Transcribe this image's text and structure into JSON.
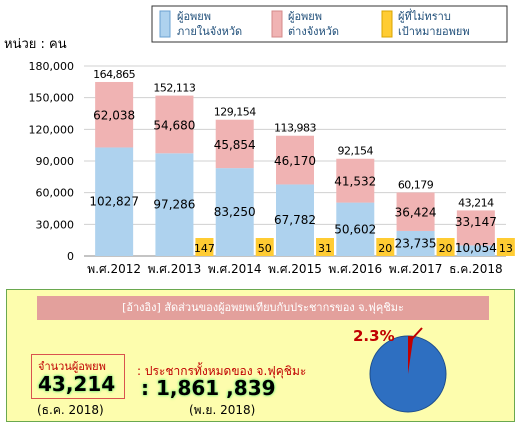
{
  "chart_data": {
    "type": "bar",
    "stacked": true,
    "unit_label": "หน่วย : คน",
    "categories": [
      "พ.ศ.2012",
      "พ.ศ.2013",
      "พ.ศ.2014",
      "พ.ศ.2015",
      "พ.ศ.2016",
      "พ.ศ.2017",
      "ธ.ค.2018"
    ],
    "series": [
      {
        "name": "ผู้อพยพ ภายในจังหวัด",
        "color": "#aed2ee",
        "values": [
          102827,
          97286,
          83250,
          67782,
          50602,
          23735,
          10054
        ]
      },
      {
        "name": "ผู้อพยพ ต่างจังหวัด",
        "color": "#f0b3b3",
        "values": [
          62038,
          54680,
          45854,
          46170,
          41532,
          36424,
          33147
        ]
      }
    ],
    "unknown_series": {
      "name": "ผู้ที่ไม่ทราบ เป้าหมายอพยพ",
      "color": "#ffcc33",
      "values": [
        null,
        147,
        50,
        31,
        20,
        20,
        13
      ]
    },
    "totals": [
      "164,865",
      "152,113",
      "129,154",
      "113,983",
      "92,154",
      "60,179",
      "43,214"
    ],
    "inner_labels": [
      "102,827",
      "97,286",
      "83,250",
      "67,782",
      "50,602",
      "23,735",
      "10,054"
    ],
    "outer_labels": [
      "62,038",
      "54,680",
      "45,854",
      "46,170",
      "41,532",
      "36,424",
      "33,147"
    ],
    "unknown_labels": [
      "",
      "147",
      "50",
      "31",
      "20",
      "20",
      "13"
    ],
    "yticks": [
      0,
      30000,
      60000,
      90000,
      120000,
      150000,
      180000
    ],
    "ytick_labels": [
      "0",
      "30,000",
      "60,000",
      "90,000",
      "120,000",
      "150,000",
      "180,000"
    ],
    "ylim": [
      0,
      180000
    ],
    "legend_position": "top",
    "grid": true
  },
  "legend": {
    "item1_line1": "ผู้อพยพ",
    "item1_line2": "ภายในจังหวัด",
    "item2_line1": "ผู้อพยพ",
    "item2_line2": "ต่างจังหวัด",
    "item3_line1": "ผู้ที่ไม่ทราบ",
    "item3_line2": "เป้าหมายอพยพ"
  },
  "summary": {
    "banner": "[อ้างอิง] สัดส่วนของผู้อพยพเทียบกับประชากรของ จ.ฟุคุชิมะ",
    "evacuee_label": "จำนวนผู้อพยพ",
    "evacuee_value": "43,214",
    "evacuee_date": "(ธ.ค. 2018)",
    "population_label": ": ประชากรทั้งหมดของ จ.ฟุคุชิมะ",
    "population_value": ": 1,861 ,839",
    "population_date": "(พ.ย. 2018)",
    "percent_label": "2.3%",
    "percent": 2.3,
    "pie_color": "#2e6fc1",
    "slice_color": "#c00000"
  }
}
